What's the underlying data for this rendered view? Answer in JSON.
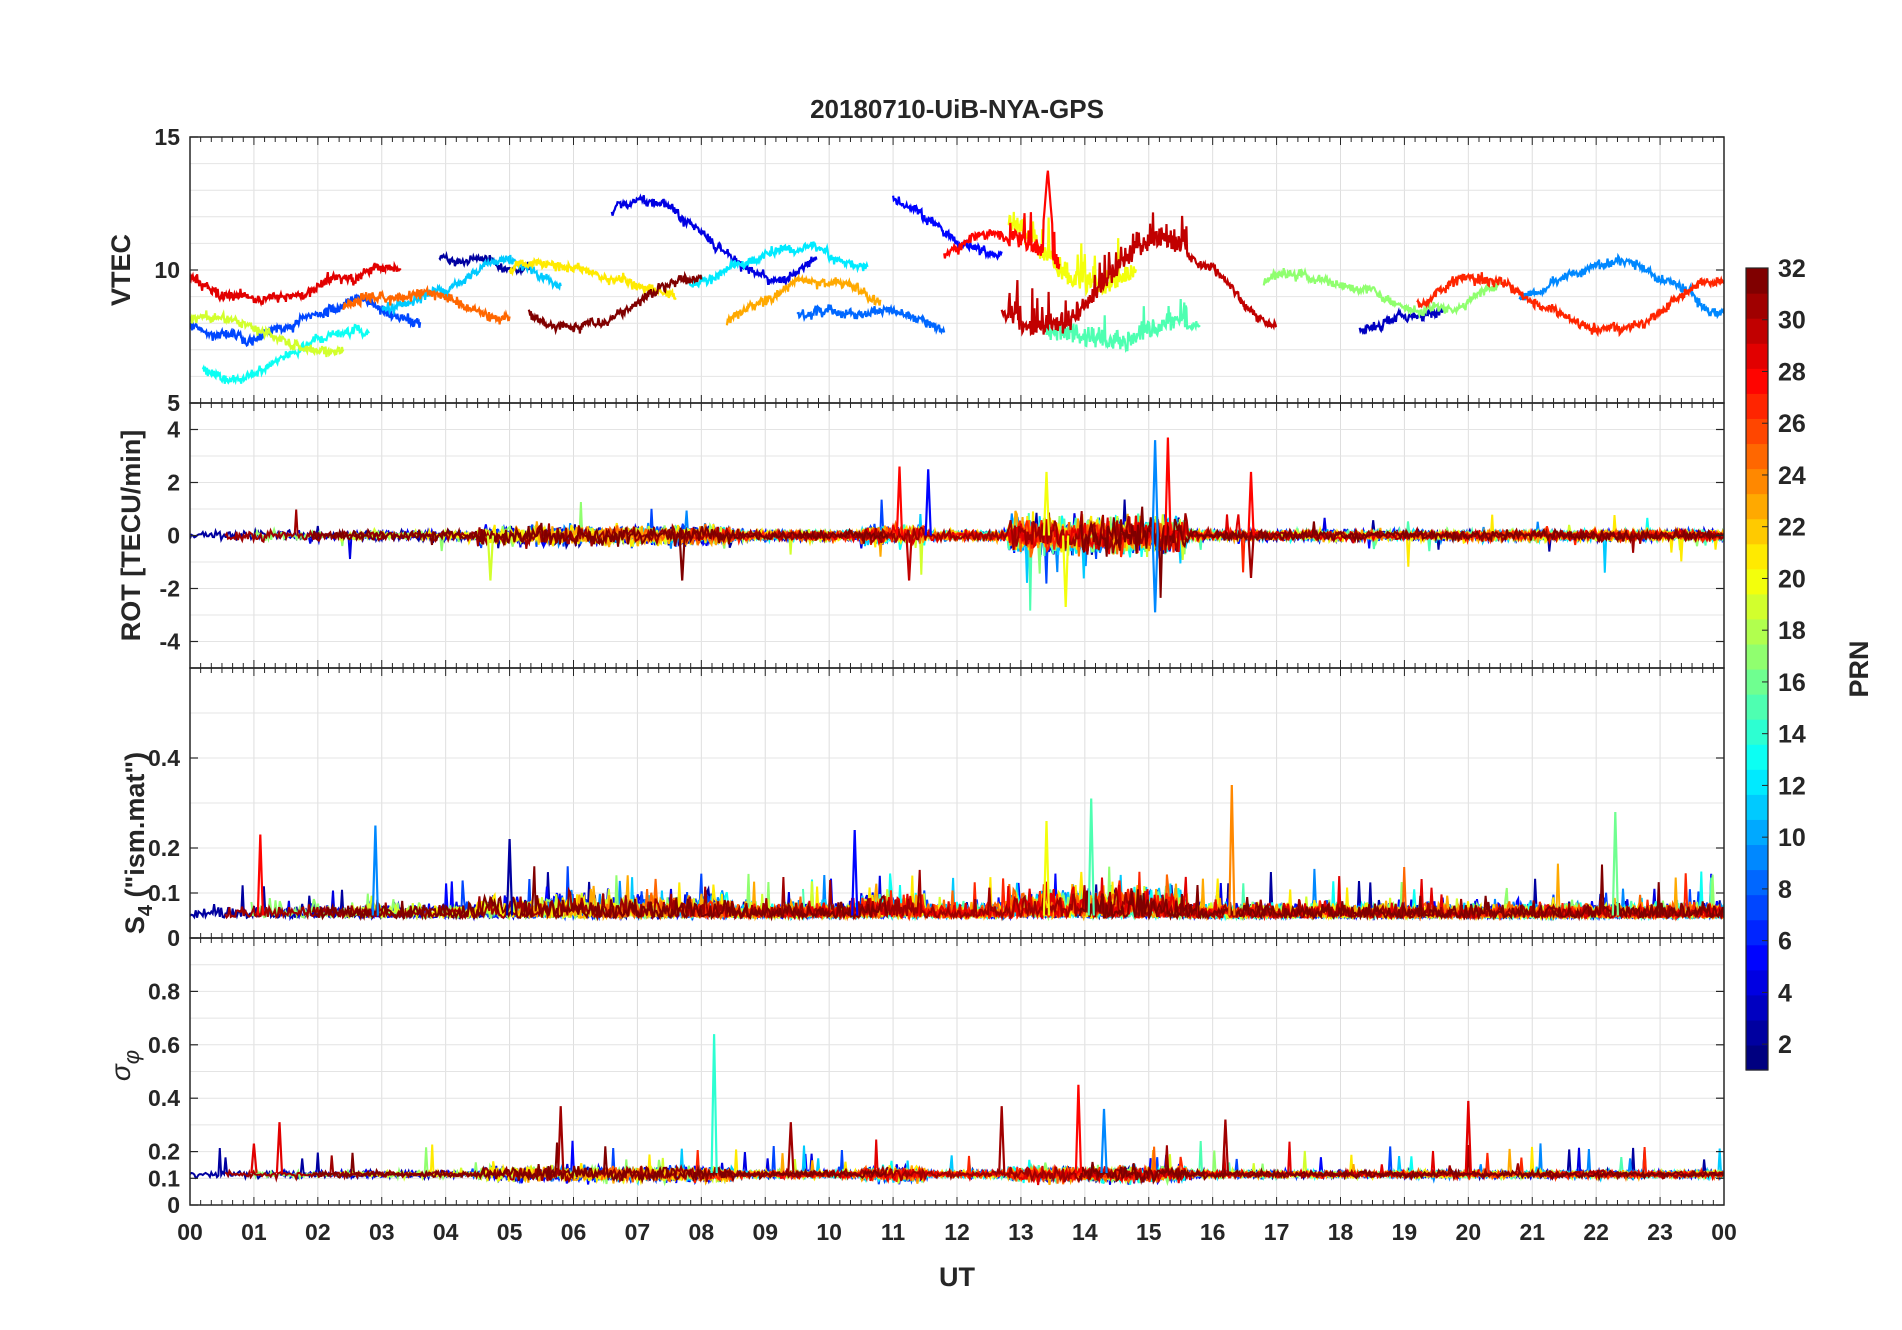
{
  "chart_data": {
    "type": "line",
    "title": "20180710-UiB-NYA-GPS",
    "xlabel": "UT",
    "x_tick_labels": [
      "00",
      "01",
      "02",
      "03",
      "04",
      "05",
      "06",
      "07",
      "08",
      "09",
      "10",
      "11",
      "12",
      "13",
      "14",
      "15",
      "16",
      "17",
      "18",
      "19",
      "20",
      "21",
      "22",
      "23",
      "00"
    ],
    "xlim": [
      0,
      24
    ],
    "grid": true,
    "colorbar": {
      "label": "PRN",
      "range": [
        1,
        32
      ],
      "colormap": "jet",
      "tick_labels": [
        "2",
        "4",
        "6",
        "8",
        "10",
        "12",
        "14",
        "16",
        "18",
        "20",
        "22",
        "24",
        "26",
        "28",
        "30",
        "32"
      ]
    },
    "panels": [
      {
        "ylabel": "VTEC",
        "ylim": [
          5,
          15
        ],
        "y_tick_labels": [
          "5",
          "10",
          "15"
        ],
        "note": "Per-satellite VTEC traces (values approximate), mostly 7-11 TECU with peaks near 14 around 13.4 UT",
        "series": [
          {
            "prn": 2,
            "x": [
              3.9,
              5.3
            ],
            "level": 10.4,
            "amp": 0.4
          },
          {
            "prn": 4,
            "x": [
              6.6,
              9.8
            ],
            "level": 11.2,
            "amp": 1.5
          },
          {
            "prn": 5,
            "x": [
              11.0,
              12.7
            ],
            "level": 11.8,
            "amp": 1.2
          },
          {
            "prn": 3,
            "x": [
              18.3,
              19.6
            ],
            "level": 8.0,
            "amp": 0.4
          },
          {
            "prn": 7,
            "x": [
              0.0,
              3.6
            ],
            "level": 8.1,
            "amp": 0.6
          },
          {
            "prn": 8,
            "x": [
              9.5,
              11.8
            ],
            "level": 8.1,
            "amp": 0.6
          },
          {
            "prn": 9,
            "x": [
              20.8,
              24.0
            ],
            "level": 9.6,
            "amp": 1.0
          },
          {
            "prn": 11,
            "x": [
              3.0,
              5.8
            ],
            "level": 9.4,
            "amp": 0.8
          },
          {
            "prn": 12,
            "x": [
              7.8,
              10.6
            ],
            "level": 10.2,
            "amp": 0.7
          },
          {
            "prn": 13,
            "x": [
              0.2,
              2.8
            ],
            "level": 7.0,
            "amp": 1.0
          },
          {
            "prn": 15,
            "x": [
              13.4,
              15.8
            ],
            "level": 7.4,
            "amp": 0.5
          },
          {
            "prn": 17,
            "x": [
              16.8,
              20.5
            ],
            "level": 9.2,
            "amp": 0.6
          },
          {
            "prn": 19,
            "x": [
              0.0,
              2.4
            ],
            "level": 7.6,
            "amp": 0.6
          },
          {
            "prn": 20,
            "x": [
              12.8,
              14.8
            ],
            "level": 10.8,
            "amp": 1.5
          },
          {
            "prn": 21,
            "x": [
              5.0,
              7.6
            ],
            "level": 9.6,
            "amp": 0.7
          },
          {
            "prn": 23,
            "x": [
              8.4,
              10.8
            ],
            "level": 8.7,
            "amp": 0.8
          },
          {
            "prn": 25,
            "x": [
              2.4,
              5.0
            ],
            "level": 8.6,
            "amp": 0.6
          },
          {
            "prn": 27,
            "x": [
              19.2,
              24.0
            ],
            "level": 8.6,
            "amp": 0.8
          },
          {
            "prn": 28,
            "x": [
              11.8,
              13.6
            ],
            "level": 10.2,
            "amp": 1.2
          },
          {
            "prn": 29,
            "x": [
              0.0,
              3.3
            ],
            "level": 9.6,
            "amp": 0.6
          },
          {
            "prn": 30,
            "x": [
              12.7,
              17.0
            ],
            "level": 9.2,
            "amp": 1.6
          },
          {
            "prn": 32,
            "x": [
              5.3,
              8.0
            ],
            "level": 8.8,
            "amp": 1.0
          }
        ]
      },
      {
        "ylabel": "ROT [TECU/min]",
        "ylim": [
          -5,
          5
        ],
        "y_tick_labels": [
          "-4",
          "-2",
          "0",
          "2",
          "4"
        ],
        "note": "Rate of TEC traces around 0 with spikes up to about +3.7 and down to about -2.9 near 13-15.5 UT"
      },
      {
        "ylabel": "S4 (\"ism.mat\")",
        "ylim": [
          0,
          0.6
        ],
        "y_tick_labels": [
          "0",
          "0.1",
          "0.2",
          "0.4"
        ],
        "note": "Amplitude scintillation index mostly 0.03-0.12 with spikes up to about 0.34 near 16.3 UT"
      },
      {
        "ylabel": "σφ",
        "ylim": [
          0,
          1
        ],
        "y_tick_labels": [
          "0",
          "0.1",
          "0.2",
          "0.4",
          "0.6",
          "0.8"
        ],
        "note": "Phase scintillation index mostly 0.08-0.15 with spikes up to about 0.64 near 8.2 UT"
      }
    ]
  }
}
